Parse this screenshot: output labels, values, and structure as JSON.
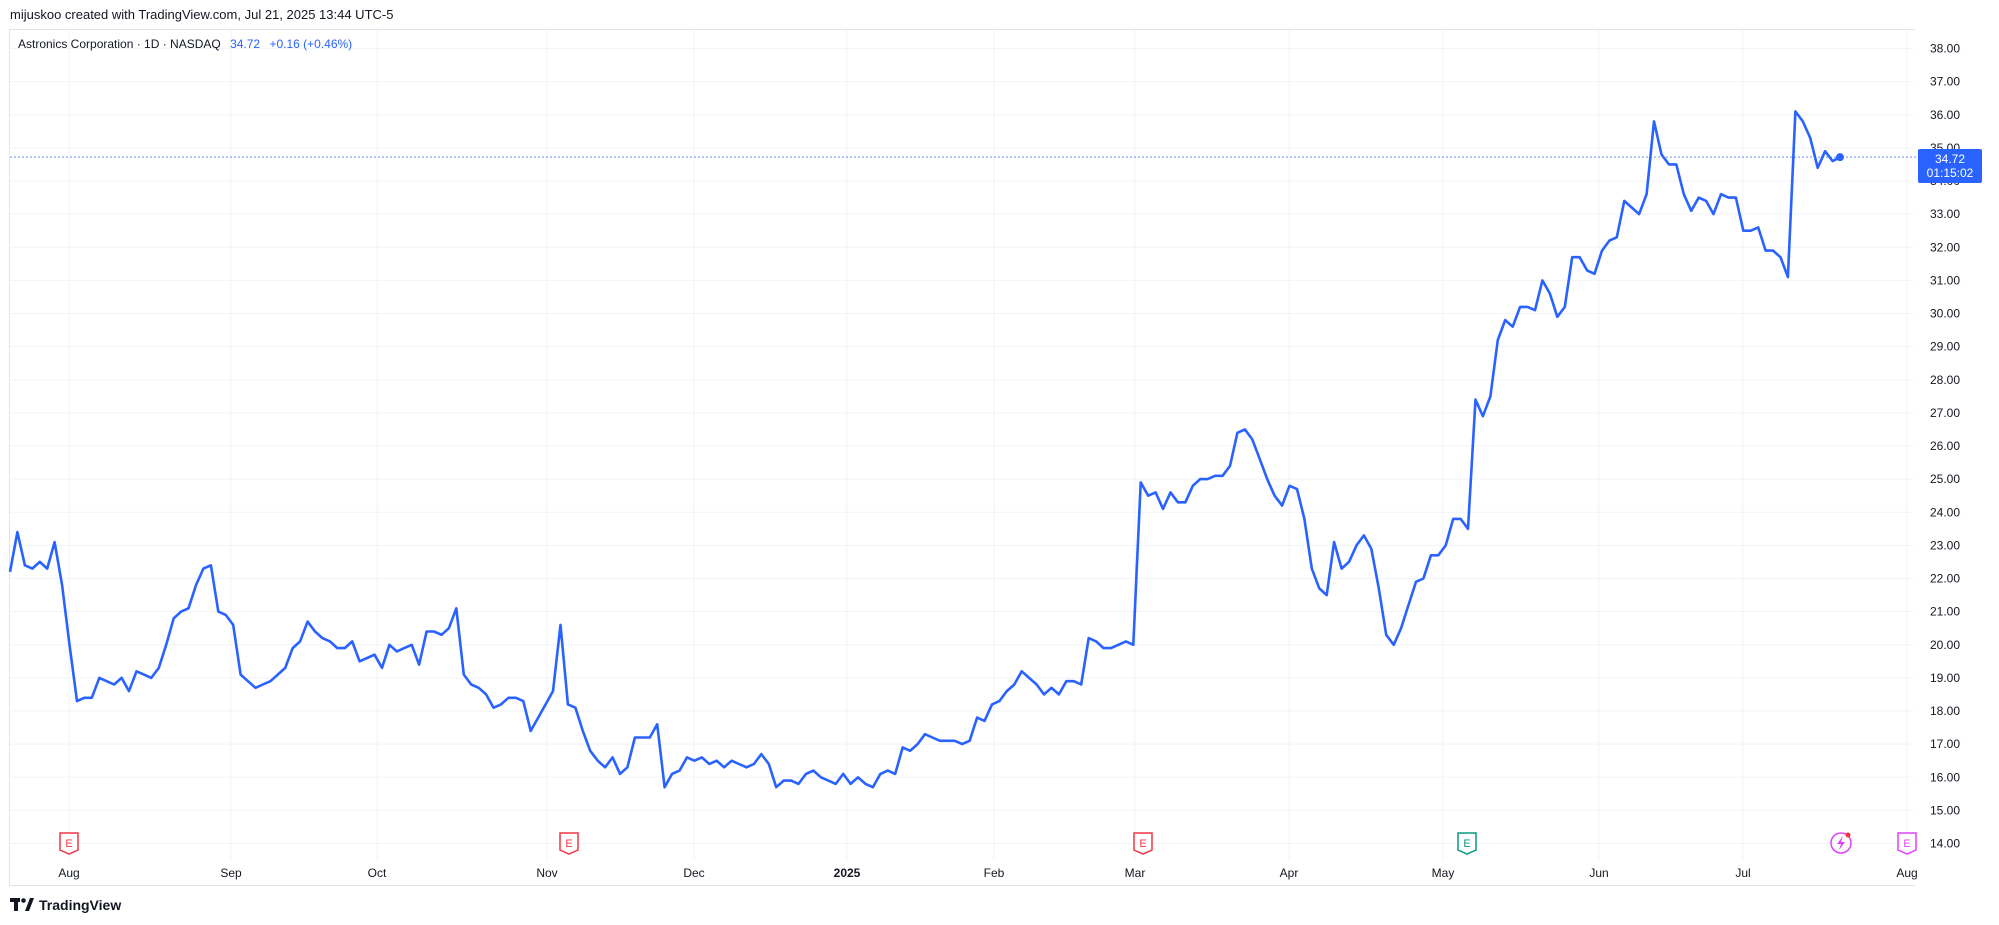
{
  "attribution": "mijuskoo created with TradingView.com, Jul 21, 2025 13:44 UTC-5",
  "legend": {
    "symbol": "Astronics Corporation · 1D · NASDAQ",
    "last_price": "34.72",
    "change": "+0.16 (+0.46%)"
  },
  "price_label": {
    "price": "34.72",
    "countdown": "01:15:02"
  },
  "footer_brand": "TradingView",
  "colors": {
    "line": "#2962ff",
    "grid": "#f0f3fa",
    "earnings_past": "#f23645",
    "earnings_positive": "#089981",
    "earnings_future": "#e040fb"
  },
  "events": [
    {
      "date": "Aug",
      "label": "E",
      "kind": "earnings-miss"
    },
    {
      "date": "Nov",
      "label": "E",
      "kind": "earnings-miss"
    },
    {
      "date": "Mar",
      "label": "E",
      "kind": "earnings-miss"
    },
    {
      "date": "May",
      "label": "E",
      "kind": "earnings-beat"
    },
    {
      "date": "Jul",
      "label": "",
      "kind": "dividend-split-icon"
    },
    {
      "date": "Aug",
      "label": "E",
      "kind": "earnings-upcoming"
    }
  ],
  "chart_data": {
    "type": "line",
    "title": "Astronics Corporation · 1D · NASDAQ",
    "xlabel": "",
    "ylabel": "",
    "ylim": [
      14,
      38
    ],
    "y_ticks": [
      "14.00",
      "15.00",
      "16.00",
      "17.00",
      "18.00",
      "19.00",
      "20.00",
      "21.00",
      "22.00",
      "23.00",
      "24.00",
      "25.00",
      "26.00",
      "27.00",
      "28.00",
      "29.00",
      "30.00",
      "31.00",
      "32.00",
      "33.00",
      "34.00",
      "35.00",
      "36.00",
      "37.00",
      "38.00"
    ],
    "x_ticks": [
      "Aug",
      "Sep",
      "Oct",
      "Nov",
      "Dec",
      "2025",
      "Feb",
      "Mar",
      "Apr",
      "May",
      "Jun",
      "Jul",
      "Aug"
    ],
    "series": [
      {
        "name": "",
        "close": [
          22.2,
          23.4,
          22.4,
          22.3,
          22.5,
          22.3,
          23.1,
          21.8,
          20.0,
          18.3,
          18.4,
          18.4,
          19.0,
          18.9,
          18.8,
          19.0,
          18.6,
          19.2,
          19.1,
          19.0,
          19.3,
          20.0,
          20.8,
          21.0,
          21.1,
          21.8,
          22.3,
          22.4,
          21.0,
          20.9,
          20.6,
          19.1,
          18.9,
          18.7,
          18.8,
          18.9,
          19.1,
          19.3,
          19.9,
          20.1,
          20.7,
          20.4,
          20.2,
          20.1,
          19.9,
          19.9,
          20.1,
          19.5,
          19.6,
          19.7,
          19.3,
          20.0,
          19.8,
          19.9,
          20.0,
          19.4,
          20.4,
          20.4,
          20.3,
          20.5,
          21.1,
          19.1,
          18.8,
          18.7,
          18.5,
          18.1,
          18.2,
          18.4,
          18.4,
          18.3,
          17.4,
          17.8,
          18.2,
          18.6,
          20.6,
          18.2,
          18.1,
          17.4,
          16.8,
          16.5,
          16.3,
          16.6,
          16.1,
          16.3,
          17.2,
          17.2,
          17.2,
          17.6,
          15.7,
          16.1,
          16.2,
          16.6,
          16.5,
          16.6,
          16.4,
          16.5,
          16.3,
          16.5,
          16.4,
          16.3,
          16.4,
          16.7,
          16.4,
          15.7,
          15.9,
          15.9,
          15.8,
          16.1,
          16.2,
          16.0,
          15.9,
          15.8,
          16.1,
          15.8,
          16.0,
          15.8,
          15.7,
          16.1,
          16.2,
          16.1,
          16.9,
          16.8,
          17.0,
          17.3,
          17.2,
          17.1,
          17.1,
          17.1,
          17.0,
          17.1,
          17.8,
          17.7,
          18.2,
          18.3,
          18.6,
          18.8,
          19.2,
          19.0,
          18.8,
          18.5,
          18.7,
          18.5,
          18.9,
          18.9,
          18.8,
          20.2,
          20.1,
          19.9,
          19.9,
          20.0,
          20.1,
          20.0,
          24.9,
          24.5,
          24.6,
          24.1,
          24.6,
          24.3,
          24.3,
          24.8,
          25.0,
          25.0,
          25.1,
          25.1,
          25.4,
          26.4,
          26.5,
          26.2,
          25.6,
          25.0,
          24.5,
          24.2,
          24.8,
          24.7,
          23.8,
          22.3,
          21.7,
          21.5,
          23.1,
          22.3,
          22.5,
          23.0,
          23.3,
          22.9,
          21.7,
          20.3,
          20.0,
          20.5,
          21.2,
          21.9,
          22.0,
          22.7,
          22.7,
          23.0,
          23.8,
          23.8,
          23.5,
          27.4,
          26.9,
          27.5,
          29.2,
          29.8,
          29.6,
          30.2,
          30.2,
          30.1,
          31.0,
          30.6,
          29.9,
          30.2,
          31.7,
          31.7,
          31.3,
          31.2,
          31.9,
          32.2,
          32.3,
          33.4,
          33.2,
          33.0,
          33.6,
          35.8,
          34.8,
          34.5,
          34.5,
          33.6,
          33.1,
          33.5,
          33.4,
          33.0,
          33.6,
          33.5,
          33.5,
          32.5,
          32.5,
          32.6,
          31.9,
          31.9,
          31.7,
          31.1,
          36.1,
          35.8,
          35.3,
          34.4,
          34.9,
          34.6,
          34.72
        ]
      }
    ]
  }
}
